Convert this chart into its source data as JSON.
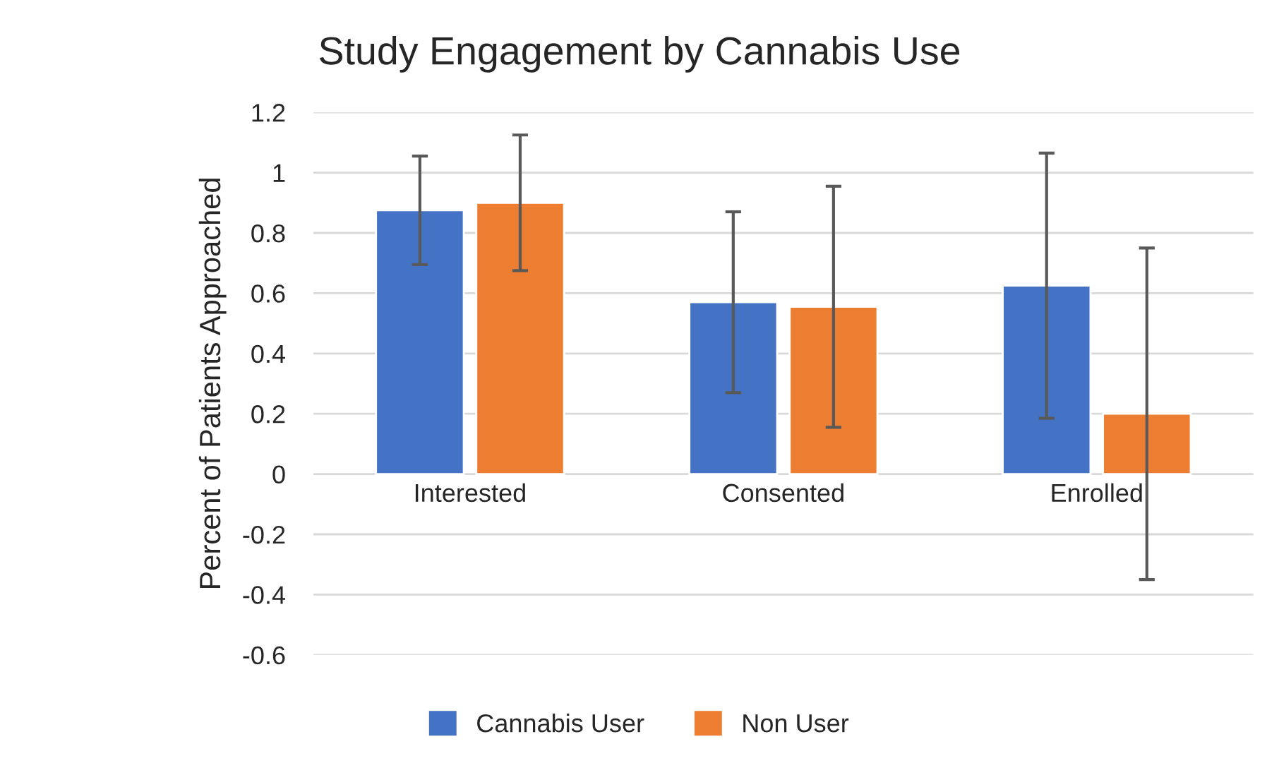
{
  "chart_data": {
    "type": "bar",
    "title": "Study Engagement by Cannabis Use",
    "ylabel": "Percent of Patients Approached",
    "categories": [
      "Interested",
      "Consented",
      "Enrolled"
    ],
    "series": [
      {
        "name": "Cannabis User",
        "color": "#4472c4",
        "values": [
          0.875,
          0.57,
          0.625
        ],
        "errors": [
          0.18,
          0.3,
          0.44
        ]
      },
      {
        "name": "Non User",
        "color": "#ed7d31",
        "values": [
          0.9,
          0.555,
          0.2
        ],
        "errors": [
          0.225,
          0.4,
          0.55
        ]
      }
    ],
    "ylim": [
      -0.6,
      1.2
    ],
    "yticks": [
      {
        "value": -0.6,
        "label": "-0.6"
      },
      {
        "value": -0.4,
        "label": "-0.4"
      },
      {
        "value": -0.2,
        "label": "-0.2"
      },
      {
        "value": 0,
        "label": "0"
      },
      {
        "value": 0.2,
        "label": "0.2"
      },
      {
        "value": 0.4,
        "label": "0.4"
      },
      {
        "value": 0.6,
        "label": "0.6"
      },
      {
        "value": 0.8,
        "label": "0.8"
      },
      {
        "value": 1,
        "label": "1"
      },
      {
        "value": 1.2,
        "label": "1.2"
      }
    ],
    "grid": "y",
    "legend": "bottom"
  }
}
